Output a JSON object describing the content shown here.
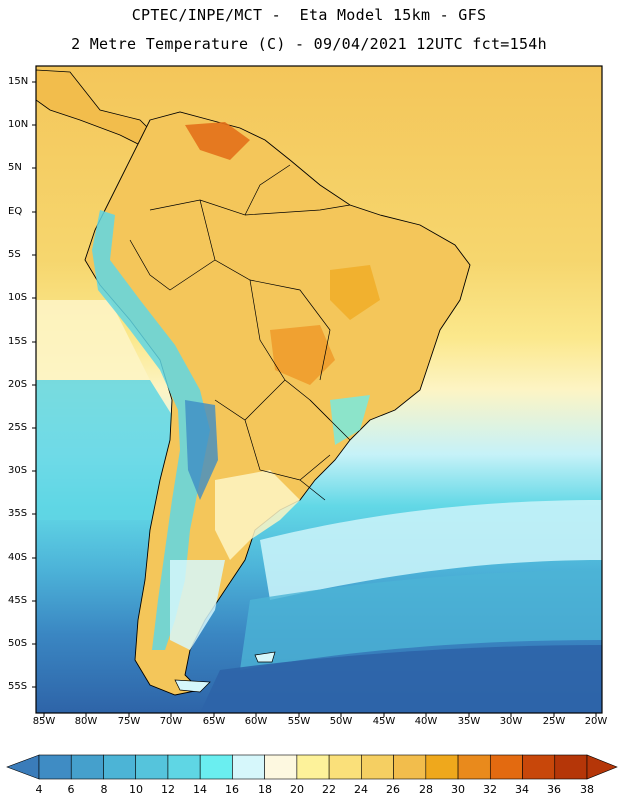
{
  "header": {
    "line1": "CPTEC/INPE/MCT -  Eta Model 15km - GFS",
    "line2": "2 Metre Temperature (C) - 09/04/2021 12UTC fct=154h"
  },
  "axes": {
    "latitude_labels": [
      "15N",
      "10N",
      "5N",
      "EQ",
      "5S",
      "10S",
      "15S",
      "20S",
      "25S",
      "30S",
      "35S",
      "40S",
      "45S",
      "50S",
      "55S"
    ],
    "longitude_labels": [
      "85W",
      "80W",
      "75W",
      "70W",
      "65W",
      "60W",
      "55W",
      "50W",
      "45W",
      "40W",
      "35W",
      "30W",
      "25W",
      "20W"
    ]
  },
  "colorbar": {
    "tick_labels": [
      "4",
      "6",
      "8",
      "10",
      "12",
      "14",
      "16",
      "18",
      "20",
      "22",
      "24",
      "26",
      "28",
      "30",
      "32",
      "34",
      "36",
      "38"
    ],
    "colors": [
      "#3a7cba",
      "#3f8cc4",
      "#45a0cc",
      "#4cb4d6",
      "#55c4dc",
      "#5fd6e4",
      "#6aeef0",
      "#d6f7fb",
      "#fdf8e0",
      "#fdf29a",
      "#fae07a",
      "#f5cf62",
      "#f2bd4c",
      "#efa81c",
      "#e98a1c",
      "#e36a10",
      "#c8470a",
      "#b53608"
    ]
  },
  "legend_colors": {
    "deep_ocean": "#2e64a8",
    "mid_ocean": "#4aaed4",
    "cool": "#6fe6ee",
    "warm": "#f6d36a",
    "hot": "#e07a22"
  }
}
